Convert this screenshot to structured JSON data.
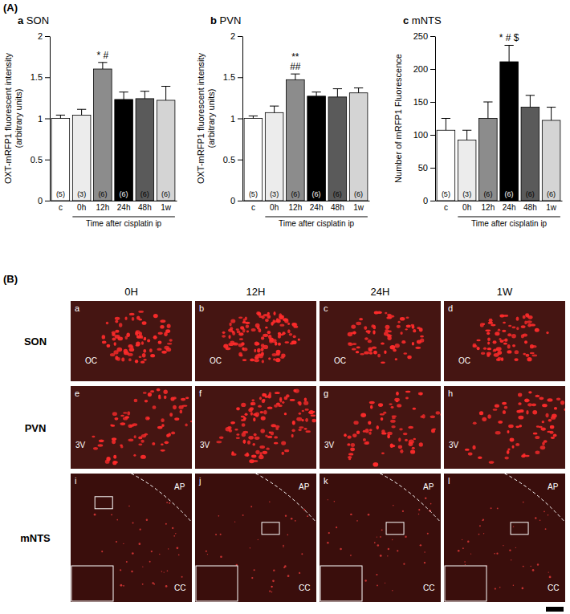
{
  "panel_label": "(A)",
  "chart_data": [
    {
      "type": "bar",
      "title": "a SON",
      "y_label": "OXT-mRFP1 fluorescent intensity",
      "y_unit": "(arbitrary units)",
      "x_label": "Time after cisplatin ip",
      "categories": [
        "c",
        "0h",
        "12h",
        "24h",
        "48h",
        "1w"
      ],
      "values": [
        1.0,
        1.04,
        1.6,
        1.23,
        1.24,
        1.22
      ],
      "errors": [
        0.04,
        0.07,
        0.08,
        0.09,
        0.09,
        0.17
      ],
      "n_labels": [
        "(5)",
        "(3)",
        "(6)",
        "(6)",
        "(6)",
        "(6)"
      ],
      "annotations": [
        null,
        null,
        [
          "* #"
        ],
        null,
        null,
        null
      ],
      "colors": [
        "#ffffff",
        "#ececec",
        "#8c8c8c",
        "#000000",
        "#5a5a5a",
        "#d4d4d4"
      ],
      "ylim": [
        0,
        2
      ],
      "yticks": [
        0,
        0.5,
        1,
        1.5,
        2
      ],
      "grid": false
    },
    {
      "type": "bar",
      "title": "b PVN",
      "y_label": "OXT-mRFP1 fluorescent intensity",
      "y_unit": "(arbitrary units)",
      "x_label": "Time after cisplatin ip",
      "categories": [
        "c",
        "0h",
        "12h",
        "24h",
        "48h",
        "1w"
      ],
      "values": [
        1.0,
        1.07,
        1.47,
        1.27,
        1.26,
        1.31
      ],
      "errors": [
        0.03,
        0.08,
        0.07,
        0.05,
        0.1,
        0.06
      ],
      "n_labels": [
        "(5)",
        "(3)",
        "(6)",
        "(6)",
        "(6)",
        "(6)"
      ],
      "annotations": [
        null,
        null,
        [
          "**",
          "##"
        ],
        null,
        null,
        null
      ],
      "colors": [
        "#ffffff",
        "#ececec",
        "#8c8c8c",
        "#000000",
        "#5a5a5a",
        "#d4d4d4"
      ],
      "ylim": [
        0,
        2
      ],
      "yticks": [
        0,
        0.5,
        1,
        1.5,
        2
      ],
      "grid": false
    },
    {
      "type": "bar",
      "title": "c mNTS",
      "y_label": "Number of mRFP1 Fluorescence",
      "x_label": "Time after cisplatin ip",
      "categories": [
        "c",
        "0h",
        "12h",
        "24h",
        "48h",
        "1w"
      ],
      "values": [
        107,
        92,
        125,
        211,
        142,
        122
      ],
      "errors": [
        18,
        15,
        25,
        25,
        18,
        20
      ],
      "n_labels": [
        "(5)",
        "(3)",
        "(6)",
        "(6)",
        "(6)",
        "(6)"
      ],
      "annotations": [
        null,
        null,
        null,
        [
          "* # $"
        ],
        null,
        null
      ],
      "colors": [
        "#ffffff",
        "#ececec",
        "#8c8c8c",
        "#000000",
        "#5a5a5a",
        "#d4d4d4"
      ],
      "ylim": [
        0,
        250
      ],
      "yticks": [
        0,
        50,
        100,
        150,
        200,
        250
      ],
      "grid": false
    }
  ],
  "image_grid": {
    "title": "(B)",
    "columns": [
      "0H",
      "12H",
      "24H",
      "1W"
    ],
    "rows": [
      {
        "name": "SON",
        "panels": [
          "a",
          "b",
          "c",
          "d"
        ],
        "landmarks": [
          "OC"
        ]
      },
      {
        "name": "PVN",
        "panels": [
          "e",
          "f",
          "g",
          "h"
        ],
        "landmarks": [
          "3V"
        ]
      },
      {
        "name": "mNTS",
        "panels": [
          "i",
          "j",
          "k",
          "l"
        ],
        "landmarks": [
          "AP",
          "CC"
        ]
      }
    ]
  }
}
